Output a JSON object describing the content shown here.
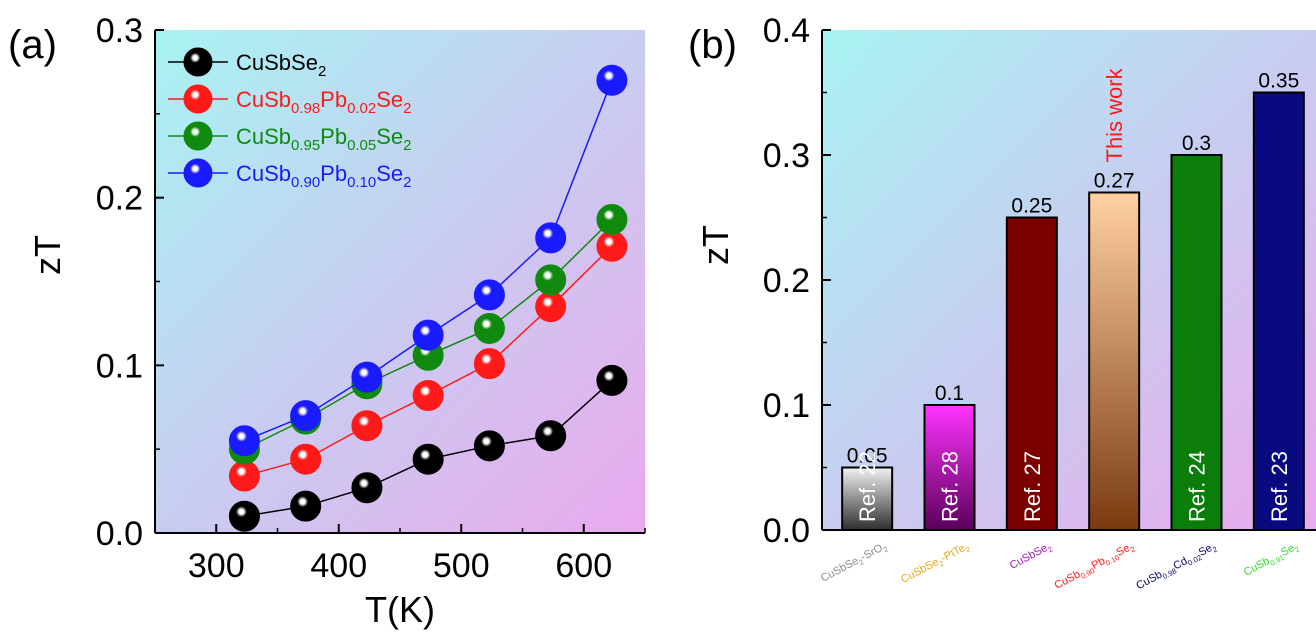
{
  "panels": {
    "a": {
      "label": "(a)"
    },
    "b": {
      "label": "(b)"
    }
  },
  "chart_data": [
    {
      "type": "line",
      "title": "",
      "xlabel": "T(K)",
      "ylabel": "zT",
      "xlim": [
        250,
        650
      ],
      "ylim": [
        0,
        0.3
      ],
      "xticks": [
        300,
        400,
        500,
        600
      ],
      "yticks": [
        0.0,
        0.1,
        0.2,
        0.3
      ],
      "ytick_labels": [
        "0.0",
        "0.1",
        "0.2",
        "0.3"
      ],
      "grid": false,
      "legend": "top-left",
      "x": [
        323,
        373,
        423,
        473,
        523,
        573,
        623
      ],
      "series": [
        {
          "name_base": "CuSb",
          "name_parts": [
            [
              "CuSbSe",
              ""
            ],
            [
              "2",
              "sub"
            ]
          ],
          "color": "#000000",
          "values": [
            0.01,
            0.016,
            0.027,
            0.044,
            0.052,
            0.058,
            0.091
          ]
        },
        {
          "name_parts": [
            [
              "CuSb",
              ""
            ],
            [
              "0.98",
              "sub"
            ],
            [
              "Pb",
              ""
            ],
            [
              "0.02",
              "sub"
            ],
            [
              "Se",
              ""
            ],
            [
              "2",
              "sub"
            ]
          ],
          "color": "#ff1a1a",
          "values": [
            0.034,
            0.044,
            0.064,
            0.082,
            0.101,
            0.135,
            0.171
          ]
        },
        {
          "name_parts": [
            [
              "CuSb",
              ""
            ],
            [
              "0.95",
              "sub"
            ],
            [
              "Pb",
              ""
            ],
            [
              "0.05",
              "sub"
            ],
            [
              "Se",
              ""
            ],
            [
              "2",
              "sub"
            ]
          ],
          "color": "#0f8a0f",
          "values": [
            0.05,
            0.068,
            0.089,
            0.106,
            0.122,
            0.151,
            0.187
          ]
        },
        {
          "name_parts": [
            [
              "CuSb",
              ""
            ],
            [
              "0.90",
              "sub"
            ],
            [
              "Pb",
              ""
            ],
            [
              "0.10",
              "sub"
            ],
            [
              "Se",
              ""
            ],
            [
              "2",
              "sub"
            ]
          ],
          "color": "#1a1aff",
          "values": [
            0.055,
            0.07,
            0.093,
            0.118,
            0.142,
            0.176,
            0.27
          ]
        }
      ]
    },
    {
      "type": "bar",
      "title": "",
      "xlabel": "",
      "ylabel": "zT",
      "ylim": [
        0,
        0.4
      ],
      "yticks": [
        0.0,
        0.1,
        0.2,
        0.3,
        0.4
      ],
      "ytick_labels": [
        "0.0",
        "0.1",
        "0.2",
        "0.3",
        "0.4"
      ],
      "grid": false,
      "categories": [
        {
          "parts": [
            [
              "CuSbSe",
              ""
            ],
            [
              "2",
              "sub"
            ],
            [
              "-SrO",
              ""
            ],
            [
              "2",
              "sub"
            ]
          ],
          "color": "#8c8c8c"
        },
        {
          "parts": [
            [
              "CuSbSe",
              ""
            ],
            [
              "2",
              "sub"
            ],
            [
              "-PtTe",
              ""
            ],
            [
              "2",
              "sub"
            ]
          ],
          "color": "#e6a817"
        },
        {
          "parts": [
            [
              "CuSbSe",
              ""
            ],
            [
              "2",
              "sub"
            ]
          ],
          "color": "#9a1ab0"
        },
        {
          "parts": [
            [
              "CuSb",
              ""
            ],
            [
              "0.90",
              "sub"
            ],
            [
              "Pb",
              ""
            ],
            [
              "0.10",
              "sub"
            ],
            [
              "Se",
              ""
            ],
            [
              "2",
              "sub"
            ]
          ],
          "color": "#ff1a1a"
        },
        {
          "parts": [
            [
              "CuSb",
              ""
            ],
            [
              "0.98",
              "sub"
            ],
            [
              "Cd",
              ""
            ],
            [
              "0.02",
              "sub"
            ],
            [
              "Se",
              ""
            ],
            [
              "2",
              "sub"
            ]
          ],
          "color": "#0a0a6e"
        },
        {
          "parts": [
            [
              "CuSb",
              ""
            ],
            [
              "0.91",
              "sub"
            ],
            [
              "Se",
              ""
            ],
            [
              "2",
              "sub"
            ]
          ],
          "color": "#2ee02e"
        }
      ],
      "values": [
        0.05,
        0.1,
        0.25,
        0.27,
        0.3,
        0.35
      ],
      "value_labels": [
        "0.05",
        "0.1",
        "0.25",
        "0.27",
        "0.3",
        "0.35"
      ],
      "bar_labels": [
        "Ref. 22",
        "Ref. 28",
        "Ref. 27",
        "",
        "Ref. 24",
        "Ref. 23"
      ],
      "bar_colors": [
        [
          "#f2f2f2",
          "#2e2e2e"
        ],
        [
          "#ff33ff",
          "#5a005a"
        ],
        [
          "#7a0000",
          "#7a0000"
        ],
        [
          "#ffd1a3",
          "#7a3a10"
        ],
        [
          "#0a7d0a",
          "#0a7d0a"
        ],
        [
          "#0a0a80",
          "#0a0a80"
        ]
      ],
      "annotation": {
        "text": "This work",
        "color": "#ff1a1a"
      }
    }
  ]
}
